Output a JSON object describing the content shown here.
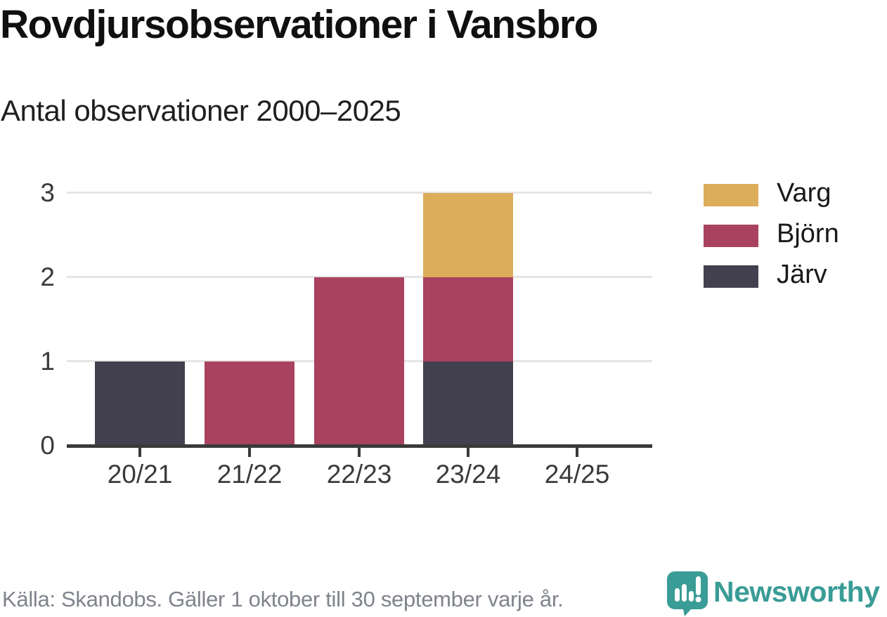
{
  "header": {
    "title": "Rovdjursobservationer i Vansbro",
    "subtitle": "Antal observationer 2000–2025"
  },
  "chart_data": {
    "type": "bar",
    "stacked": true,
    "title": "Rovdjursobservationer i Vansbro",
    "subtitle": "Antal observationer 2000–2025",
    "xlabel": "",
    "ylabel": "",
    "categories": [
      "20/21",
      "21/22",
      "22/23",
      "23/24",
      "24/25"
    ],
    "series": [
      {
        "name": "Varg",
        "color": "#dcad5a",
        "values": [
          0,
          0,
          0,
          1,
          0
        ]
      },
      {
        "name": "Björn",
        "color": "#a9425f",
        "values": [
          0,
          1,
          2,
          1,
          0
        ]
      },
      {
        "name": "Järv",
        "color": "#434050",
        "values": [
          1,
          0,
          0,
          1,
          0
        ]
      }
    ],
    "stack_order_bottom_to_top": [
      "Järv",
      "Björn",
      "Varg"
    ],
    "totals_per_category": [
      1,
      1,
      2,
      3,
      0
    ],
    "ylim": [
      0,
      3
    ],
    "yticks": [
      0,
      1,
      2,
      3
    ],
    "grid": true,
    "legend_position": "right"
  },
  "footer": {
    "source": "Källa: Skandobs. Gäller 1 oktober till 30 september varje år.",
    "brand": "Newsworthy"
  },
  "colors": {
    "axis": "#3a3a3a",
    "grid": "#e5e5e5",
    "footer_text": "#7f838c",
    "brand_teal": "#3a9c96",
    "varg": "#dcad5a",
    "bjorn": "#a9425f",
    "jarv": "#434050"
  }
}
